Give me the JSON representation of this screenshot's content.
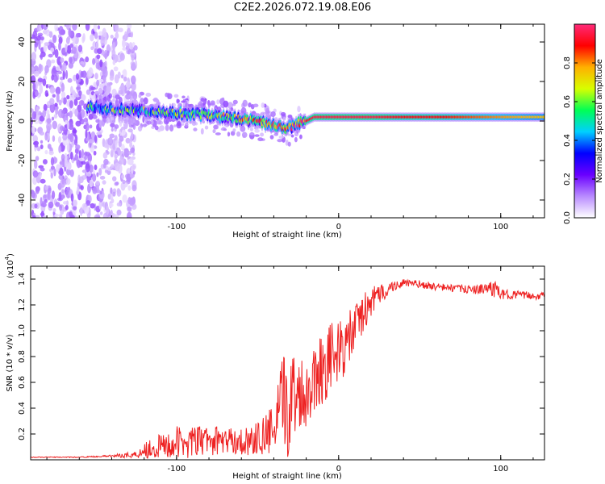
{
  "title": "C2E2.2026.072.19.08.E06",
  "chart_data": [
    {
      "type": "heatmap",
      "name": "spectrogram",
      "xlabel": "Height of straight line (km)",
      "ylabel": "Frequency (Hz)",
      "xlim": [
        -190,
        127
      ],
      "ylim": [
        -49,
        49
      ],
      "xticks": [
        -100,
        0,
        100
      ],
      "xtick_labels": [
        "-100",
        "0",
        "100"
      ],
      "yticks": [
        -40,
        -20,
        0,
        20,
        40
      ],
      "ytick_labels": [
        "-40",
        "-20",
        "0",
        "20",
        "40"
      ],
      "colorbar": {
        "label": "Normalized spectral amplitude",
        "range": [
          0,
          1
        ],
        "ticks": [
          0,
          0.2,
          0.4,
          0.6,
          0.8
        ],
        "tick_labels": [
          "0.0",
          "0.2",
          "0.4",
          "0.6",
          "0.8"
        ],
        "stops": [
          "#ffffff",
          "#b98bff",
          "#6a00ff",
          "#0000ff",
          "#00d0ff",
          "#00ff55",
          "#d8ff00",
          "#ffb000",
          "#ff0000",
          "#ff2b7a"
        ]
      },
      "ridge": {
        "x": [
          -155,
          -140,
          -120,
          -100,
          -80,
          -60,
          -45,
          -38,
          -30,
          -25,
          -20,
          -15,
          -5,
          0,
          20,
          40,
          60,
          80,
          100,
          127
        ],
        "freq": [
          7,
          6,
          5,
          4,
          3,
          1,
          -1,
          -3,
          -3,
          -1,
          0,
          2,
          2,
          2,
          2,
          2,
          2,
          2,
          2,
          2
        ],
        "amplitude": [
          0.45,
          0.5,
          0.5,
          0.55,
          0.6,
          0.7,
          0.8,
          0.85,
          0.85,
          0.9,
          0.9,
          0.95,
          0.95,
          0.95,
          0.95,
          0.9,
          0.9,
          0.85,
          0.8,
          0.75
        ]
      }
    },
    {
      "type": "line",
      "name": "snr",
      "xlabel": "Height of straight line (km)",
      "ylabel": "SNR (10 * v/v)",
      "scale_label": "(x10",
      "scale_exp": "4",
      "scale_close": ")",
      "xlim": [
        -190,
        127
      ],
      "ylim": [
        0,
        1.5
      ],
      "xticks": [
        -100,
        0,
        100
      ],
      "xtick_labels": [
        "-100",
        "0",
        "100"
      ],
      "yticks": [
        0.2,
        0.4,
        0.6,
        0.8,
        1.0,
        1.2,
        1.4
      ],
      "ytick_labels": [
        "0.2",
        "0.4",
        "0.6",
        "0.8",
        "1.0",
        "1.2",
        "1.4"
      ],
      "color": "#ee2222",
      "series": [
        {
          "name": "SNR",
          "x": [
            -190,
            -160,
            -140,
            -125,
            -120,
            -110,
            -100,
            -90,
            -80,
            -70,
            -60,
            -50,
            -45,
            -40,
            -35,
            -30,
            -25,
            -20,
            -15,
            -10,
            -5,
            0,
            5,
            10,
            15,
            20,
            25,
            30,
            35,
            40,
            50,
            60,
            70,
            80,
            90,
            95,
            100,
            110,
            120,
            127
          ],
          "y": [
            0.02,
            0.02,
            0.03,
            0.04,
            0.08,
            0.1,
            0.13,
            0.14,
            0.15,
            0.15,
            0.14,
            0.16,
            0.2,
            0.22,
            0.4,
            0.45,
            0.55,
            0.5,
            0.65,
            0.72,
            0.8,
            0.82,
            0.9,
            1.02,
            1.13,
            1.22,
            1.28,
            1.32,
            1.35,
            1.37,
            1.36,
            1.34,
            1.33,
            1.32,
            1.32,
            1.34,
            1.28,
            1.28,
            1.27,
            1.27
          ],
          "noise": [
            0.003,
            0.003,
            0.008,
            0.03,
            0.07,
            0.1,
            0.13,
            0.12,
            0.12,
            0.1,
            0.1,
            0.13,
            0.17,
            0.2,
            0.4,
            0.45,
            0.3,
            0.25,
            0.28,
            0.3,
            0.28,
            0.25,
            0.22,
            0.2,
            0.16,
            0.12,
            0.08,
            0.06,
            0.04,
            0.03,
            0.03,
            0.03,
            0.03,
            0.03,
            0.04,
            0.08,
            0.04,
            0.03,
            0.03,
            0.03
          ]
        }
      ]
    }
  ]
}
